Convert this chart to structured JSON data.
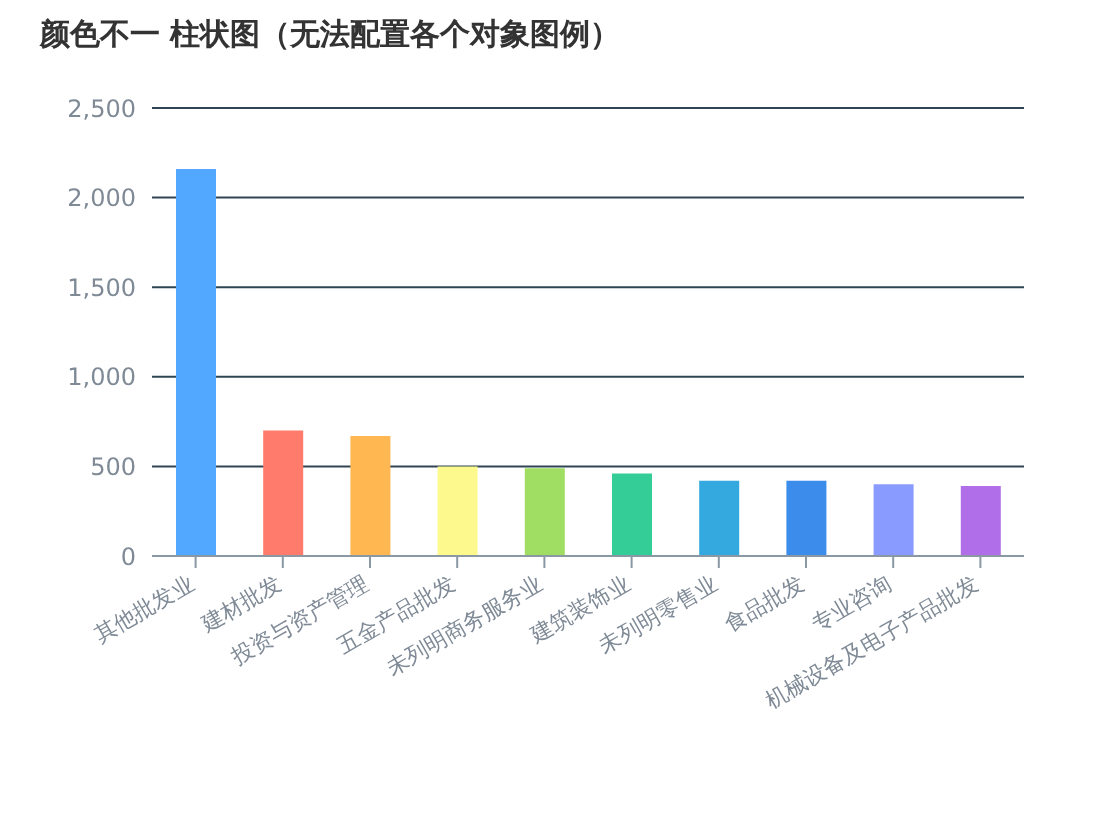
{
  "chart_data": {
    "type": "bar",
    "title": "颜色不一 柱状图（无法配置各个对象图例）",
    "categories": [
      "其他批发业",
      "建材批发",
      "投资与资产管理",
      "五金产品批发",
      "未列明商务服务业",
      "建筑装饰业",
      "未列明零售业",
      "食品批发",
      "专业咨询",
      "机械设备及电子产品批发"
    ],
    "values": [
      2160,
      700,
      670,
      500,
      490,
      460,
      420,
      420,
      400,
      390
    ],
    "colors": [
      "#52a8ff",
      "#ff7b6b",
      "#ffb751",
      "#fdf98c",
      "#9fdd63",
      "#35cd97",
      "#33a9df",
      "#3b8ceb",
      "#8a9bff",
      "#b06fe8"
    ],
    "ylim": [
      0,
      2500
    ],
    "yticks": [
      0,
      500,
      {
        "value": 1000,
        "label": "1,000"
      },
      {
        "value": 1500,
        "label": "1,500"
      },
      {
        "value": 2000,
        "label": "2,000"
      },
      {
        "value": 2500,
        "label": "2,500"
      }
    ],
    "grid": "y"
  }
}
